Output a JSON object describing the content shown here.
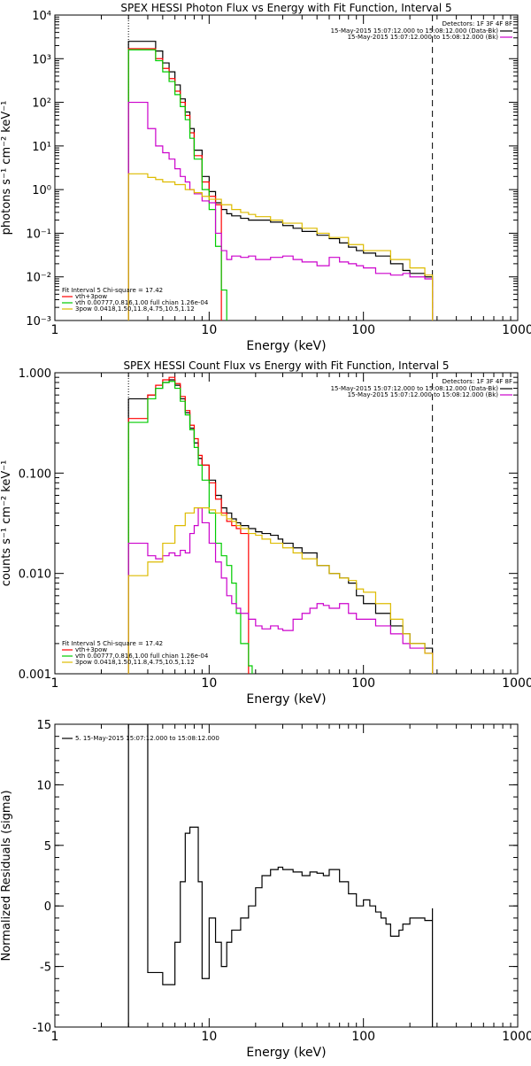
{
  "chart_data": [
    {
      "type": "line",
      "title": "SPEX HESSI Photon Flux vs Energy with Fit Function, Interval 5",
      "xlabel": "Energy (keV)",
      "ylabel": "photons s⁻¹ cm⁻² keV⁻¹",
      "xscale": "log",
      "yscale": "log",
      "xlim": [
        1,
        1000
      ],
      "ylim": [
        0.001,
        10000
      ],
      "xticks": [
        {
          "v": 1,
          "label": "1"
        },
        {
          "v": 10,
          "label": "10"
        },
        {
          "v": 100,
          "label": "100"
        },
        {
          "v": 1000,
          "label": "1000"
        }
      ],
      "yticks": [
        {
          "v": 0.001,
          "label": "10⁻³"
        },
        {
          "v": 0.01,
          "label": "10⁻²"
        },
        {
          "v": 0.1,
          "label": "10⁻¹"
        },
        {
          "v": 1,
          "label": "10⁰"
        },
        {
          "v": 10,
          "label": "10¹"
        },
        {
          "v": 100,
          "label": "10²"
        },
        {
          "v": 1000,
          "label": "10³"
        },
        {
          "v": 10000,
          "label": "10⁴"
        }
      ],
      "vlines": [
        {
          "x": 3,
          "style": "dotted"
        },
        {
          "x": 280,
          "style": "dashed"
        }
      ],
      "legend_right": {
        "header": "Detectors: 1F 3F 4F 8F",
        "entries": [
          {
            "text": "15-May-2015 15:07:12.000 to 15:08:12.000 (Data-Bk)",
            "color": "#000000"
          },
          {
            "text": "15-May-2015 15:07:12.000 to 15:08:12.000 (Bk)",
            "color": "#cc00cc"
          }
        ]
      },
      "legend_left": {
        "header": "Fit Interval 5   Chi-square = 17.42",
        "entries": [
          {
            "text": "vth+3pow",
            "color": "#ff0000"
          },
          {
            "text": "vth 0.00777,0.816,1.00  full chian 1.26e-04",
            "color": "#00cc00"
          },
          {
            "text": "3pow 0.0418,1.50,11.8,4.75,10.5,1.12",
            "color": "#ddbb00"
          }
        ]
      },
      "series": [
        {
          "color": "#000000",
          "x": [
            3,
            3.5,
            4,
            4.5,
            5,
            5.5,
            6,
            6.5,
            7,
            7.5,
            8,
            9,
            10,
            11,
            12,
            13,
            14,
            16,
            18,
            20,
            25,
            30,
            35,
            40,
            50,
            60,
            70,
            80,
            90,
            100,
            120,
            150,
            180,
            200,
            250,
            280
          ],
          "y": [
            2500,
            2500,
            2500,
            1500,
            800,
            500,
            250,
            120,
            60,
            25,
            8,
            2,
            0.9,
            0.5,
            0.35,
            0.28,
            0.25,
            0.22,
            0.2,
            0.2,
            0.18,
            0.15,
            0.13,
            0.11,
            0.09,
            0.075,
            0.06,
            0.048,
            0.04,
            0.035,
            0.03,
            0.02,
            0.014,
            0.012,
            0.01,
            0.01
          ]
        },
        {
          "color": "#ff0000",
          "x": [
            3,
            3.5,
            4,
            4.5,
            5,
            5.5,
            6,
            6.5,
            7,
            7.5,
            8,
            9,
            10,
            11,
            12
          ],
          "y": [
            1700,
            1700,
            1700,
            1000,
            600,
            350,
            180,
            100,
            50,
            20,
            6,
            1.5,
            0.7,
            0.45,
            0.4
          ]
        },
        {
          "color": "#00cc00",
          "x": [
            3,
            3.5,
            4,
            4.5,
            5,
            5.5,
            6,
            6.5,
            7,
            7.5,
            8,
            9,
            10,
            11,
            12,
            13
          ],
          "y": [
            1600,
            1600,
            1600,
            900,
            500,
            300,
            150,
            80,
            40,
            15,
            5,
            1,
            0.35,
            0.05,
            0.005,
            0.001
          ]
        },
        {
          "color": "#cc00cc",
          "x": [
            3,
            3.5,
            4,
            4.5,
            5,
            5.5,
            6,
            6.5,
            7,
            7.5,
            8,
            9,
            10,
            11,
            12,
            13,
            14,
            16,
            18,
            20,
            25,
            30,
            35,
            40,
            50,
            60,
            70,
            80,
            90,
            100,
            120,
            150,
            180,
            200,
            250,
            280
          ],
          "y": [
            100,
            100,
            25,
            10,
            7,
            5,
            3,
            2,
            1.5,
            1,
            0.8,
            0.55,
            0.5,
            0.1,
            0.04,
            0.025,
            0.03,
            0.028,
            0.03,
            0.025,
            0.028,
            0.03,
            0.025,
            0.022,
            0.018,
            0.028,
            0.022,
            0.02,
            0.018,
            0.016,
            0.012,
            0.011,
            0.012,
            0.01,
            0.009,
            0.008
          ]
        },
        {
          "color": "#ddbb00",
          "x": [
            3,
            3.5,
            4,
            4.5,
            5,
            6,
            7,
            8,
            9,
            10,
            12,
            14,
            16,
            18,
            20,
            25,
            30,
            40,
            50,
            60,
            80,
            100,
            150,
            200,
            250,
            280
          ],
          "y": [
            2.3,
            2.3,
            1.9,
            1.7,
            1.5,
            1.3,
            1.0,
            0.85,
            0.7,
            0.6,
            0.45,
            0.35,
            0.3,
            0.27,
            0.24,
            0.2,
            0.17,
            0.13,
            0.1,
            0.08,
            0.055,
            0.04,
            0.025,
            0.016,
            0.011,
            0.009
          ]
        }
      ]
    },
    {
      "type": "line",
      "title": "SPEX HESSI Count Flux vs Energy with Fit Function, Interval 5",
      "xlabel": "Energy (keV)",
      "ylabel": "counts s⁻¹ cm⁻² keV⁻¹",
      "xscale": "log",
      "yscale": "log",
      "xlim": [
        1,
        1000
      ],
      "ylim": [
        0.001,
        1.0
      ],
      "xticks": [
        {
          "v": 1,
          "label": "1"
        },
        {
          "v": 10,
          "label": "10"
        },
        {
          "v": 100,
          "label": "100"
        },
        {
          "v": 1000,
          "label": "1000"
        }
      ],
      "yticks": [
        {
          "v": 0.001,
          "label": "0.001"
        },
        {
          "v": 0.01,
          "label": "0.010"
        },
        {
          "v": 0.1,
          "label": "0.100"
        },
        {
          "v": 1,
          "label": "1.000"
        }
      ],
      "vlines": [
        {
          "x": 3,
          "style": "dotted"
        },
        {
          "x": 280,
          "style": "dashed"
        }
      ],
      "legend_right": {
        "header": "Detectors: 1F 3F 4F 8F",
        "entries": [
          {
            "text": "15-May-2015 15:07:12.000 to 15:08:12.000 (Data-Bk)",
            "color": "#000000"
          },
          {
            "text": "15-May-2015 15:07:12.000 to 15:08:12.000 (Bk)",
            "color": "#cc00cc"
          }
        ]
      },
      "legend_left": {
        "header": "Fit Interval 5   Chi-square = 17.42",
        "entries": [
          {
            "text": "vth+3pow",
            "color": "#ff0000"
          },
          {
            "text": "vth 0.00777,0.816,1.00  full chian 1.26e-04",
            "color": "#00cc00"
          },
          {
            "text": "3pow 0.0418,1.50,11.8,4.75,10.5,1.12",
            "color": "#ddbb00"
          }
        ]
      },
      "series": [
        {
          "color": "#000000",
          "x": [
            3,
            4,
            4.5,
            5,
            5.5,
            6,
            6.5,
            7,
            7.5,
            8,
            8.5,
            9,
            10,
            11,
            12,
            13,
            14,
            15,
            16,
            18,
            20,
            22,
            25,
            28,
            30,
            35,
            40,
            50,
            60,
            70,
            80,
            90,
            100,
            120,
            150,
            180,
            200,
            250,
            280
          ],
          "y": [
            0.55,
            0.6,
            0.7,
            0.8,
            0.85,
            0.75,
            0.55,
            0.4,
            0.28,
            0.2,
            0.14,
            0.12,
            0.085,
            0.06,
            0.045,
            0.04,
            0.035,
            0.032,
            0.03,
            0.028,
            0.026,
            0.025,
            0.024,
            0.022,
            0.02,
            0.018,
            0.016,
            0.012,
            0.01,
            0.009,
            0.008,
            0.006,
            0.005,
            0.004,
            0.003,
            0.0025,
            0.002,
            0.0018,
            0.0016
          ]
        },
        {
          "color": "#ff0000",
          "x": [
            3,
            4,
            4.5,
            5,
            5.5,
            6,
            6.5,
            7,
            7.5,
            8,
            8.5,
            9,
            10,
            11,
            12,
            13,
            14,
            15,
            16,
            18
          ],
          "y": [
            0.35,
            0.6,
            0.75,
            0.85,
            0.9,
            0.78,
            0.58,
            0.42,
            0.3,
            0.22,
            0.15,
            0.12,
            0.08,
            0.055,
            0.04,
            0.033,
            0.03,
            0.028,
            0.025,
            0.022
          ]
        },
        {
          "color": "#00cc00",
          "x": [
            3,
            4,
            4.5,
            5,
            5.5,
            6,
            6.5,
            7,
            7.5,
            8,
            8.5,
            9,
            10,
            11,
            12,
            13,
            14,
            15,
            16,
            18,
            19
          ],
          "y": [
            0.32,
            0.55,
            0.7,
            0.8,
            0.82,
            0.7,
            0.52,
            0.38,
            0.27,
            0.18,
            0.12,
            0.085,
            0.04,
            0.02,
            0.015,
            0.012,
            0.008,
            0.004,
            0.002,
            0.0012,
            0.001
          ]
        },
        {
          "color": "#cc00cc",
          "x": [
            3,
            4,
            4.5,
            5,
            5.5,
            6,
            6.5,
            7,
            7.5,
            8,
            8.5,
            9,
            10,
            11,
            12,
            13,
            14,
            15,
            16,
            18,
            20,
            22,
            25,
            28,
            30,
            35,
            40,
            45,
            50,
            55,
            60,
            70,
            80,
            90,
            100,
            120,
            150,
            180,
            200,
            250,
            280
          ],
          "y": [
            0.02,
            0.015,
            0.014,
            0.015,
            0.016,
            0.015,
            0.017,
            0.016,
            0.025,
            0.03,
            0.045,
            0.032,
            0.02,
            0.013,
            0.009,
            0.006,
            0.005,
            0.0045,
            0.004,
            0.0035,
            0.003,
            0.0028,
            0.003,
            0.0028,
            0.0027,
            0.0035,
            0.004,
            0.0045,
            0.005,
            0.0048,
            0.0045,
            0.005,
            0.004,
            0.0035,
            0.0035,
            0.003,
            0.0025,
            0.002,
            0.0018,
            0.0016,
            0.0014
          ]
        },
        {
          "color": "#ddbb00",
          "x": [
            3,
            4,
            5,
            6,
            7,
            8,
            9,
            10,
            11,
            12,
            13,
            14,
            15,
            16,
            18,
            20,
            22,
            25,
            30,
            35,
            40,
            50,
            60,
            70,
            80,
            90,
            100,
            120,
            150,
            180,
            200,
            250,
            280
          ],
          "y": [
            0.0095,
            0.013,
            0.02,
            0.03,
            0.04,
            0.045,
            0.045,
            0.043,
            0.04,
            0.038,
            0.035,
            0.033,
            0.03,
            0.028,
            0.025,
            0.024,
            0.022,
            0.02,
            0.018,
            0.016,
            0.014,
            0.012,
            0.01,
            0.009,
            0.0085,
            0.007,
            0.0065,
            0.005,
            0.0035,
            0.0025,
            0.002,
            0.0016,
            0.0012
          ]
        }
      ]
    },
    {
      "type": "line",
      "title": "",
      "xlabel": "Energy (keV)",
      "ylabel": "Normalized Residuals (sigma)",
      "xscale": "log",
      "yscale": "linear",
      "xlim": [
        1,
        1000
      ],
      "ylim": [
        -10,
        15
      ],
      "xticks": [
        {
          "v": 1,
          "label": "1"
        },
        {
          "v": 10,
          "label": "10"
        },
        {
          "v": 100,
          "label": "100"
        },
        {
          "v": 1000,
          "label": "1000"
        }
      ],
      "yticks": [
        {
          "v": -10,
          "label": "-10"
        },
        {
          "v": -5,
          "label": "-5"
        },
        {
          "v": 0,
          "label": "0"
        },
        {
          "v": 5,
          "label": "5"
        },
        {
          "v": 10,
          "label": "10"
        },
        {
          "v": 15,
          "label": "15"
        }
      ],
      "vlines": [],
      "legend_right": null,
      "legend_left": {
        "header": "",
        "entries": [
          {
            "text": "5. 15-May-2015 15:07:12.000 to 15:08:12.000",
            "color": "#000000"
          }
        ]
      },
      "series": [
        {
          "color": "#000000",
          "x": [
            3,
            4,
            4.5,
            5,
            5.5,
            6,
            6.5,
            7,
            7.5,
            8,
            8.5,
            9,
            10,
            11,
            12,
            13,
            14,
            15,
            16,
            18,
            20,
            22,
            25,
            28,
            30,
            35,
            40,
            45,
            50,
            55,
            60,
            70,
            80,
            90,
            100,
            110,
            120,
            130,
            140,
            150,
            160,
            170,
            180,
            200,
            220,
            250,
            280
          ],
          "y": [
            15,
            -5.5,
            -5.5,
            -6.5,
            -6.5,
            -3,
            2,
            6,
            6.5,
            6.5,
            2,
            -6,
            -1,
            -3,
            -5,
            -3,
            -2,
            -2,
            -1,
            0,
            1.5,
            2.5,
            3,
            3.2,
            3,
            2.8,
            2.5,
            2.8,
            2.7,
            2.5,
            3,
            2,
            1,
            0,
            0.5,
            0,
            -0.5,
            -1,
            -1.5,
            -2.5,
            -2.5,
            -2,
            -1.5,
            -1,
            -1,
            -1.2,
            -0.2
          ]
        }
      ]
    }
  ]
}
